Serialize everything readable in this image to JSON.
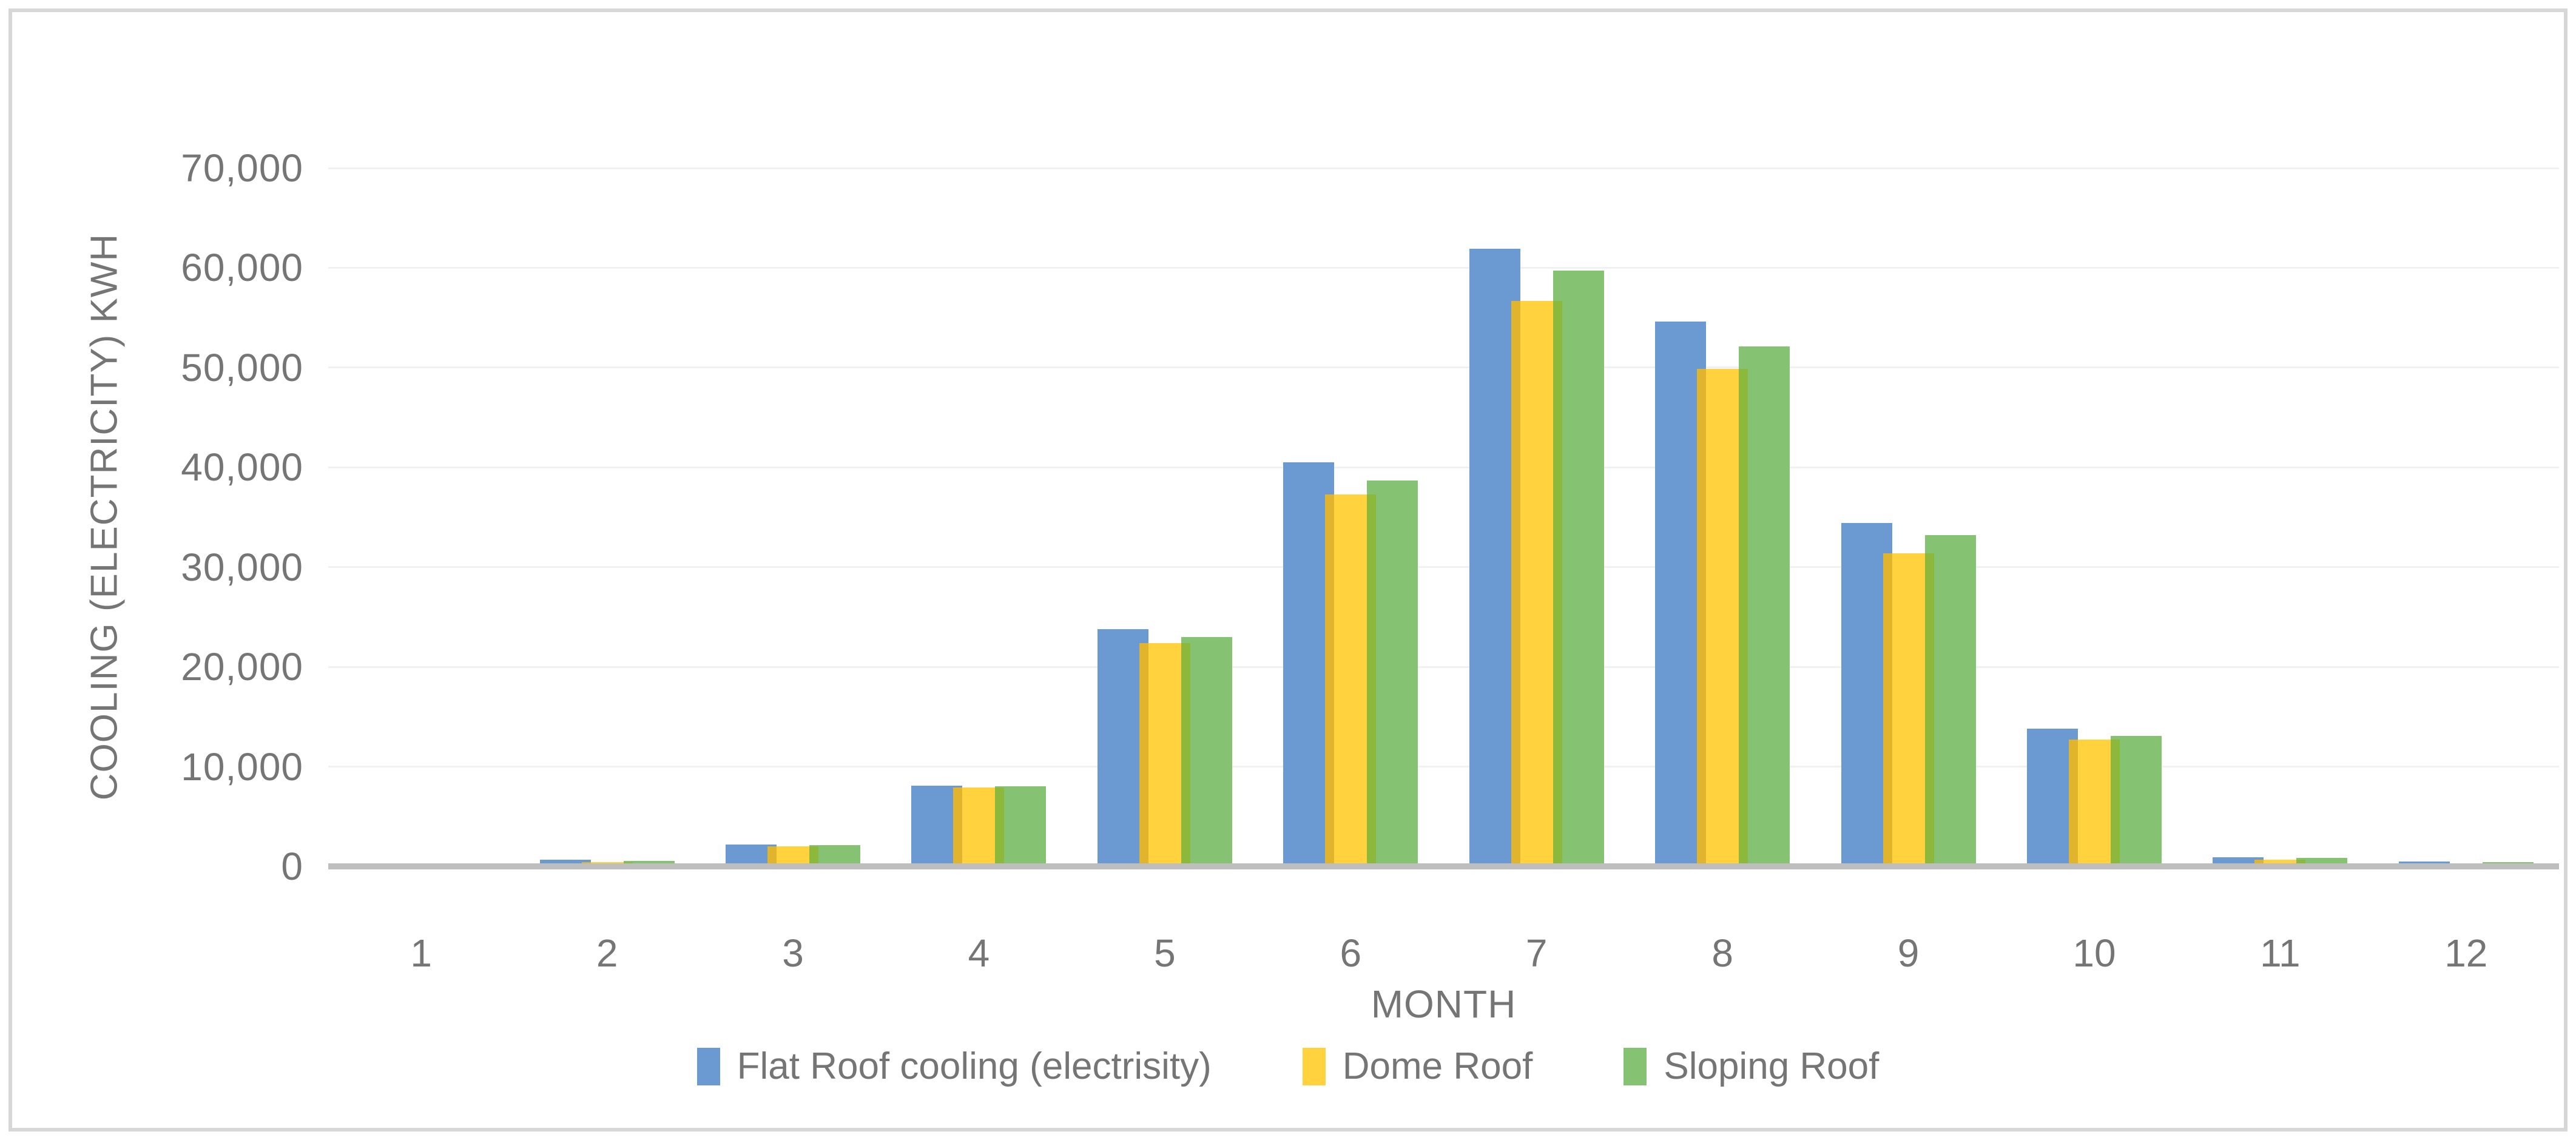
{
  "window": {
    "background_color": "#FFFFFF",
    "border_color": "#D7D7D7"
  },
  "chart_data": {
    "type": "bar",
    "title": "",
    "xlabel": "MONTH",
    "ylabel": "COOLING (ELECTRICITY) KWH",
    "categories": [
      "1",
      "2",
      "3",
      "4",
      "5",
      "6",
      "7",
      "8",
      "9",
      "10",
      "11",
      "12"
    ],
    "series": [
      {
        "name": "Flat Roof cooling (electrisity)",
        "color": "#6B9AD3",
        "overlap_edge_color": null,
        "values": [
          150,
          700,
          2200,
          8100,
          23800,
          40500,
          61900,
          54600,
          34400,
          13800,
          900,
          500
        ]
      },
      {
        "name": "Dome Roof",
        "color": "#FFD23E",
        "overlap_edge_color": "#E0B42D",
        "values": [
          100,
          450,
          2000,
          7900,
          22400,
          37300,
          56700,
          49900,
          31400,
          12700,
          700,
          250
        ]
      },
      {
        "name": "Sloping Roof",
        "color": "#85C271",
        "overlap_edge_color": "#8CB93C",
        "values": [
          120,
          550,
          2100,
          8000,
          23000,
          38700,
          59700,
          52100,
          33200,
          13100,
          850,
          450
        ]
      }
    ],
    "ylim": [
      0,
      70000
    ],
    "y_tick_step": 10000,
    "y_ticks": [
      "0",
      "10,000",
      "20,000",
      "30,000",
      "40,000",
      "50,000",
      "60,000",
      "70,000"
    ],
    "grid": true,
    "gridline_color": "#F1F1F1",
    "axis_line_color": "#BEBEBE",
    "text_color": "#757575",
    "legend_position": "bottom"
  }
}
